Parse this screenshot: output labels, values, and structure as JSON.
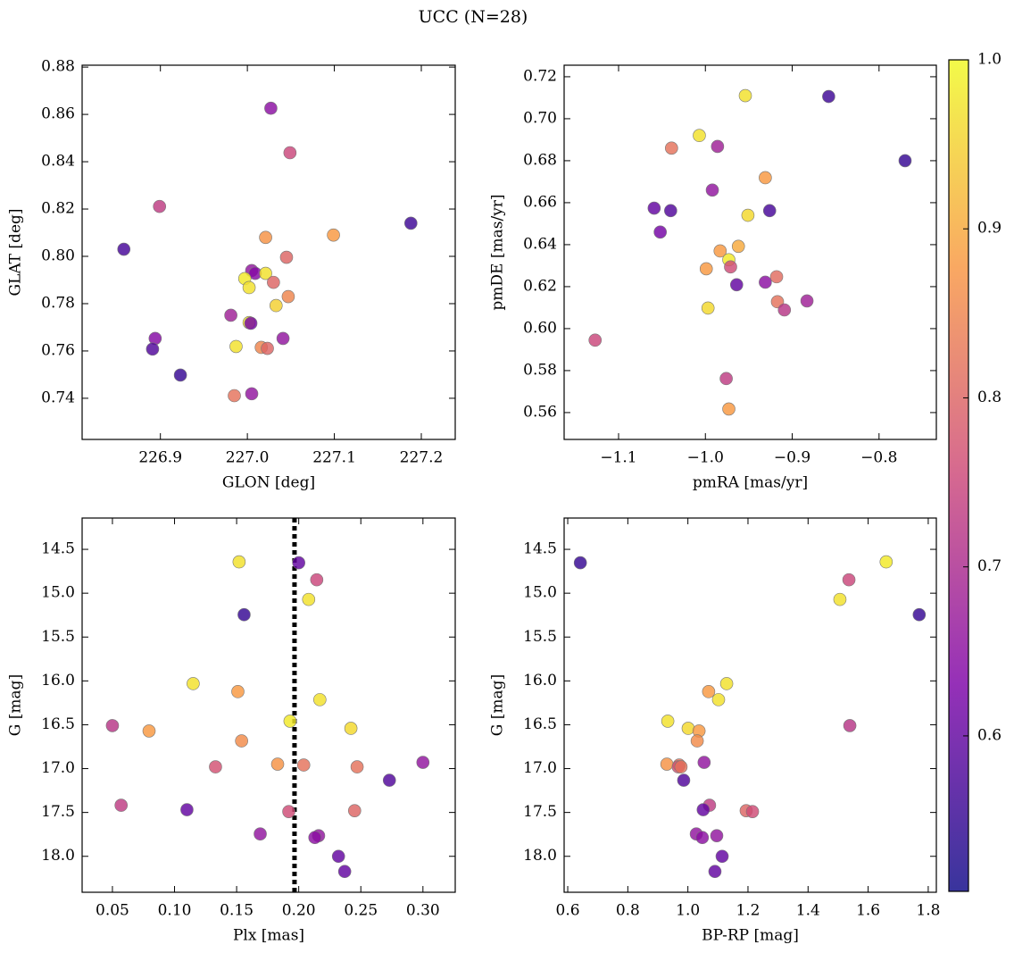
{
  "title": "UCC (N=28)",
  "colormap": "plasma",
  "clim": [
    0.508,
    1.0
  ],
  "cticks": [
    0.6,
    0.7,
    0.8,
    0.9,
    {
      "value": 1,
      "label": "1.0"
    }
  ],
  "chart_data": [
    {
      "type": "scatter",
      "xlabel": "GLON [deg]",
      "ylabel": "GLAT [deg]",
      "x": [
        227.027,
        227.049,
        226.899,
        226.858,
        227.188,
        227.021,
        227.099,
        227.045,
        227.005,
        227.009,
        227.021,
        226.997,
        227.03,
        227.002,
        227.047,
        227.033,
        226.981,
        227.002,
        227.004,
        226.894,
        227.041,
        226.987,
        227.016,
        227.023,
        226.891,
        226.923,
        226.985,
        227.005
      ],
      "y": [
        0.8626,
        0.8438,
        0.8211,
        0.803,
        0.814,
        0.808,
        0.809,
        0.7996,
        0.794,
        0.7928,
        0.7928,
        0.7906,
        0.789,
        0.7868,
        0.783,
        0.7792,
        0.7751,
        0.772,
        0.7717,
        0.7653,
        0.7653,
        0.7619,
        0.7615,
        0.7611,
        0.7608,
        0.7498,
        0.7411,
        0.7419
      ],
      "c": [
        0.65,
        0.75,
        0.73,
        0.57,
        0.56,
        0.87,
        0.88,
        0.8,
        0.66,
        0.64,
        0.97,
        0.98,
        0.8,
        0.97,
        0.85,
        0.95,
        0.68,
        0.97,
        0.62,
        0.64,
        0.66,
        0.97,
        0.85,
        0.8,
        0.58,
        0.55,
        0.82,
        0.66
      ],
      "xlim": [
        226.81,
        227.239
      ],
      "ylim": [
        0.7226,
        0.8808
      ],
      "xticks": [
        226.9,
        {
          "value": 227,
          "label": "227.0"
        },
        227.1,
        227.2
      ],
      "yticks": [
        0.74,
        0.76,
        0.78,
        {
          "value": 0.8,
          "label": "0.80"
        },
        0.82,
        0.84,
        0.86,
        0.88
      ]
    },
    {
      "type": "scatter",
      "xlabel": "pmRA [mas/yr]",
      "ylabel": "pmDE [mas/yr]",
      "x": [
        -0.954,
        -0.858,
        -1.007,
        -1.039,
        -0.986,
        -0.77,
        -0.931,
        -0.992,
        -1.059,
        -1.04,
        -0.926,
        -0.951,
        -1.052,
        -0.962,
        -0.983,
        -0.973,
        -0.999,
        -0.971,
        -0.918,
        -0.964,
        -0.931,
        -0.917,
        -0.883,
        -0.997,
        -0.909,
        -1.127,
        -0.976,
        -0.973
      ],
      "y": [
        0.711,
        0.7106,
        0.692,
        0.686,
        0.6868,
        0.68,
        0.6719,
        0.666,
        0.6574,
        0.6562,
        0.6562,
        0.654,
        0.646,
        0.6392,
        0.637,
        0.6328,
        0.6285,
        0.6294,
        0.6247,
        0.6209,
        0.6221,
        0.6128,
        0.6132,
        0.6098,
        0.6089,
        0.5945,
        0.5762,
        0.5617
      ],
      "c": [
        0.97,
        0.56,
        0.97,
        0.82,
        0.68,
        0.55,
        0.88,
        0.66,
        0.6,
        0.58,
        0.57,
        0.96,
        0.62,
        0.9,
        0.88,
        0.98,
        0.88,
        0.76,
        0.81,
        0.6,
        0.65,
        0.82,
        0.68,
        0.96,
        0.72,
        0.75,
        0.73,
        0.88
      ],
      "xlim": [
        -1.1627,
        -0.734
      ],
      "ylim": [
        0.5472,
        0.7255
      ],
      "xticks": [
        {
          "value": -1.1,
          "label": "−1.1"
        },
        {
          "value": -1,
          "label": "−1.0"
        },
        {
          "value": -0.9,
          "label": "−0.9"
        },
        {
          "value": -0.8,
          "label": "−0.8"
        }
      ],
      "yticks": [
        0.56,
        0.58,
        {
          "value": 0.6,
          "label": "0.60"
        },
        0.62,
        0.64,
        0.66,
        0.68,
        {
          "value": 0.7,
          "label": "0.70"
        },
        0.72
      ]
    },
    {
      "type": "scatter",
      "xlabel": "Plx [mas]",
      "ylabel": "G [mag]",
      "vline": 0.1966,
      "x": [
        0.152,
        0.2,
        0.2145,
        0.208,
        0.156,
        0.115,
        0.151,
        0.217,
        0.193,
        0.05,
        0.242,
        0.0795,
        0.154,
        0.3,
        0.183,
        0.204,
        0.133,
        0.247,
        0.273,
        0.057,
        0.11,
        0.245,
        0.192,
        0.169,
        0.216,
        0.213,
        0.232,
        0.237
      ],
      "y": [
        14.643,
        14.653,
        14.847,
        15.071,
        15.245,
        16.031,
        16.122,
        16.214,
        16.459,
        16.51,
        16.541,
        16.571,
        16.684,
        16.929,
        16.949,
        16.959,
        16.98,
        16.98,
        17.133,
        17.418,
        17.469,
        17.48,
        17.49,
        17.745,
        17.765,
        17.786,
        18.0,
        18.173
      ],
      "c": [
        0.97,
        0.6,
        0.75,
        0.97,
        0.55,
        0.97,
        0.88,
        0.97,
        0.98,
        0.72,
        0.96,
        0.88,
        0.86,
        0.66,
        0.87,
        0.82,
        0.77,
        0.82,
        0.58,
        0.73,
        0.6,
        0.8,
        0.76,
        0.66,
        0.66,
        0.65,
        0.6,
        0.6
      ],
      "xlim": [
        0.0256,
        0.326
      ],
      "ylim": [
        18.41,
        14.143
      ],
      "xticks": [
        0.05,
        {
          "value": 0.1,
          "label": "0.10"
        },
        0.15,
        {
          "value": 0.2,
          "label": "0.20"
        },
        0.25,
        {
          "value": 0.3,
          "label": "0.30"
        }
      ],
      "yticks": [
        14.5,
        {
          "value": 15,
          "label": "15.0"
        },
        15.5,
        {
          "value": 16,
          "label": "16.0"
        },
        16.5,
        {
          "value": 17,
          "label": "17.0"
        },
        17.5,
        {
          "value": 18,
          "label": "18.0"
        }
      ]
    },
    {
      "type": "scatter",
      "xlabel": "BP-RP [mag]",
      "ylabel": "G [mag]",
      "x": [
        0.642,
        1.66,
        1.536,
        1.506,
        1.77,
        1.129,
        1.069,
        1.102,
        0.933,
        1.539,
        1.001,
        1.037,
        1.031,
        1.054,
        0.93,
        0.971,
        0.968,
        0.977,
        0.986,
        1.072,
        1.051,
        1.194,
        1.215,
        1.028,
        1.096,
        1.048,
        1.114,
        1.09
      ],
      "y": [
        14.653,
        14.643,
        14.847,
        15.071,
        15.245,
        16.031,
        16.122,
        16.214,
        16.459,
        16.51,
        16.541,
        16.571,
        16.684,
        16.929,
        16.949,
        16.959,
        16.98,
        16.98,
        17.133,
        17.418,
        17.469,
        17.48,
        17.49,
        17.745,
        17.765,
        17.786,
        18.0,
        18.173
      ],
      "c": [
        0.55,
        0.98,
        0.75,
        0.97,
        0.55,
        0.97,
        0.88,
        0.97,
        0.97,
        0.72,
        0.96,
        0.88,
        0.86,
        0.66,
        0.87,
        0.82,
        0.77,
        0.82,
        0.58,
        0.73,
        0.6,
        0.8,
        0.76,
        0.66,
        0.66,
        0.65,
        0.6,
        0.6
      ],
      "xlim": [
        0.588,
        1.827
      ],
      "ylim": [
        18.41,
        14.143
      ],
      "xticks": [
        0.6,
        0.8,
        {
          "value": 1,
          "label": "1.0"
        },
        1.2,
        1.4,
        1.6,
        1.8
      ],
      "yticks": [
        14.5,
        {
          "value": 15,
          "label": "15.0"
        },
        15.5,
        {
          "value": 16,
          "label": "16.0"
        },
        16.5,
        {
          "value": 17,
          "label": "17.0"
        },
        17.5,
        {
          "value": 18,
          "label": "18.0"
        }
      ]
    }
  ]
}
